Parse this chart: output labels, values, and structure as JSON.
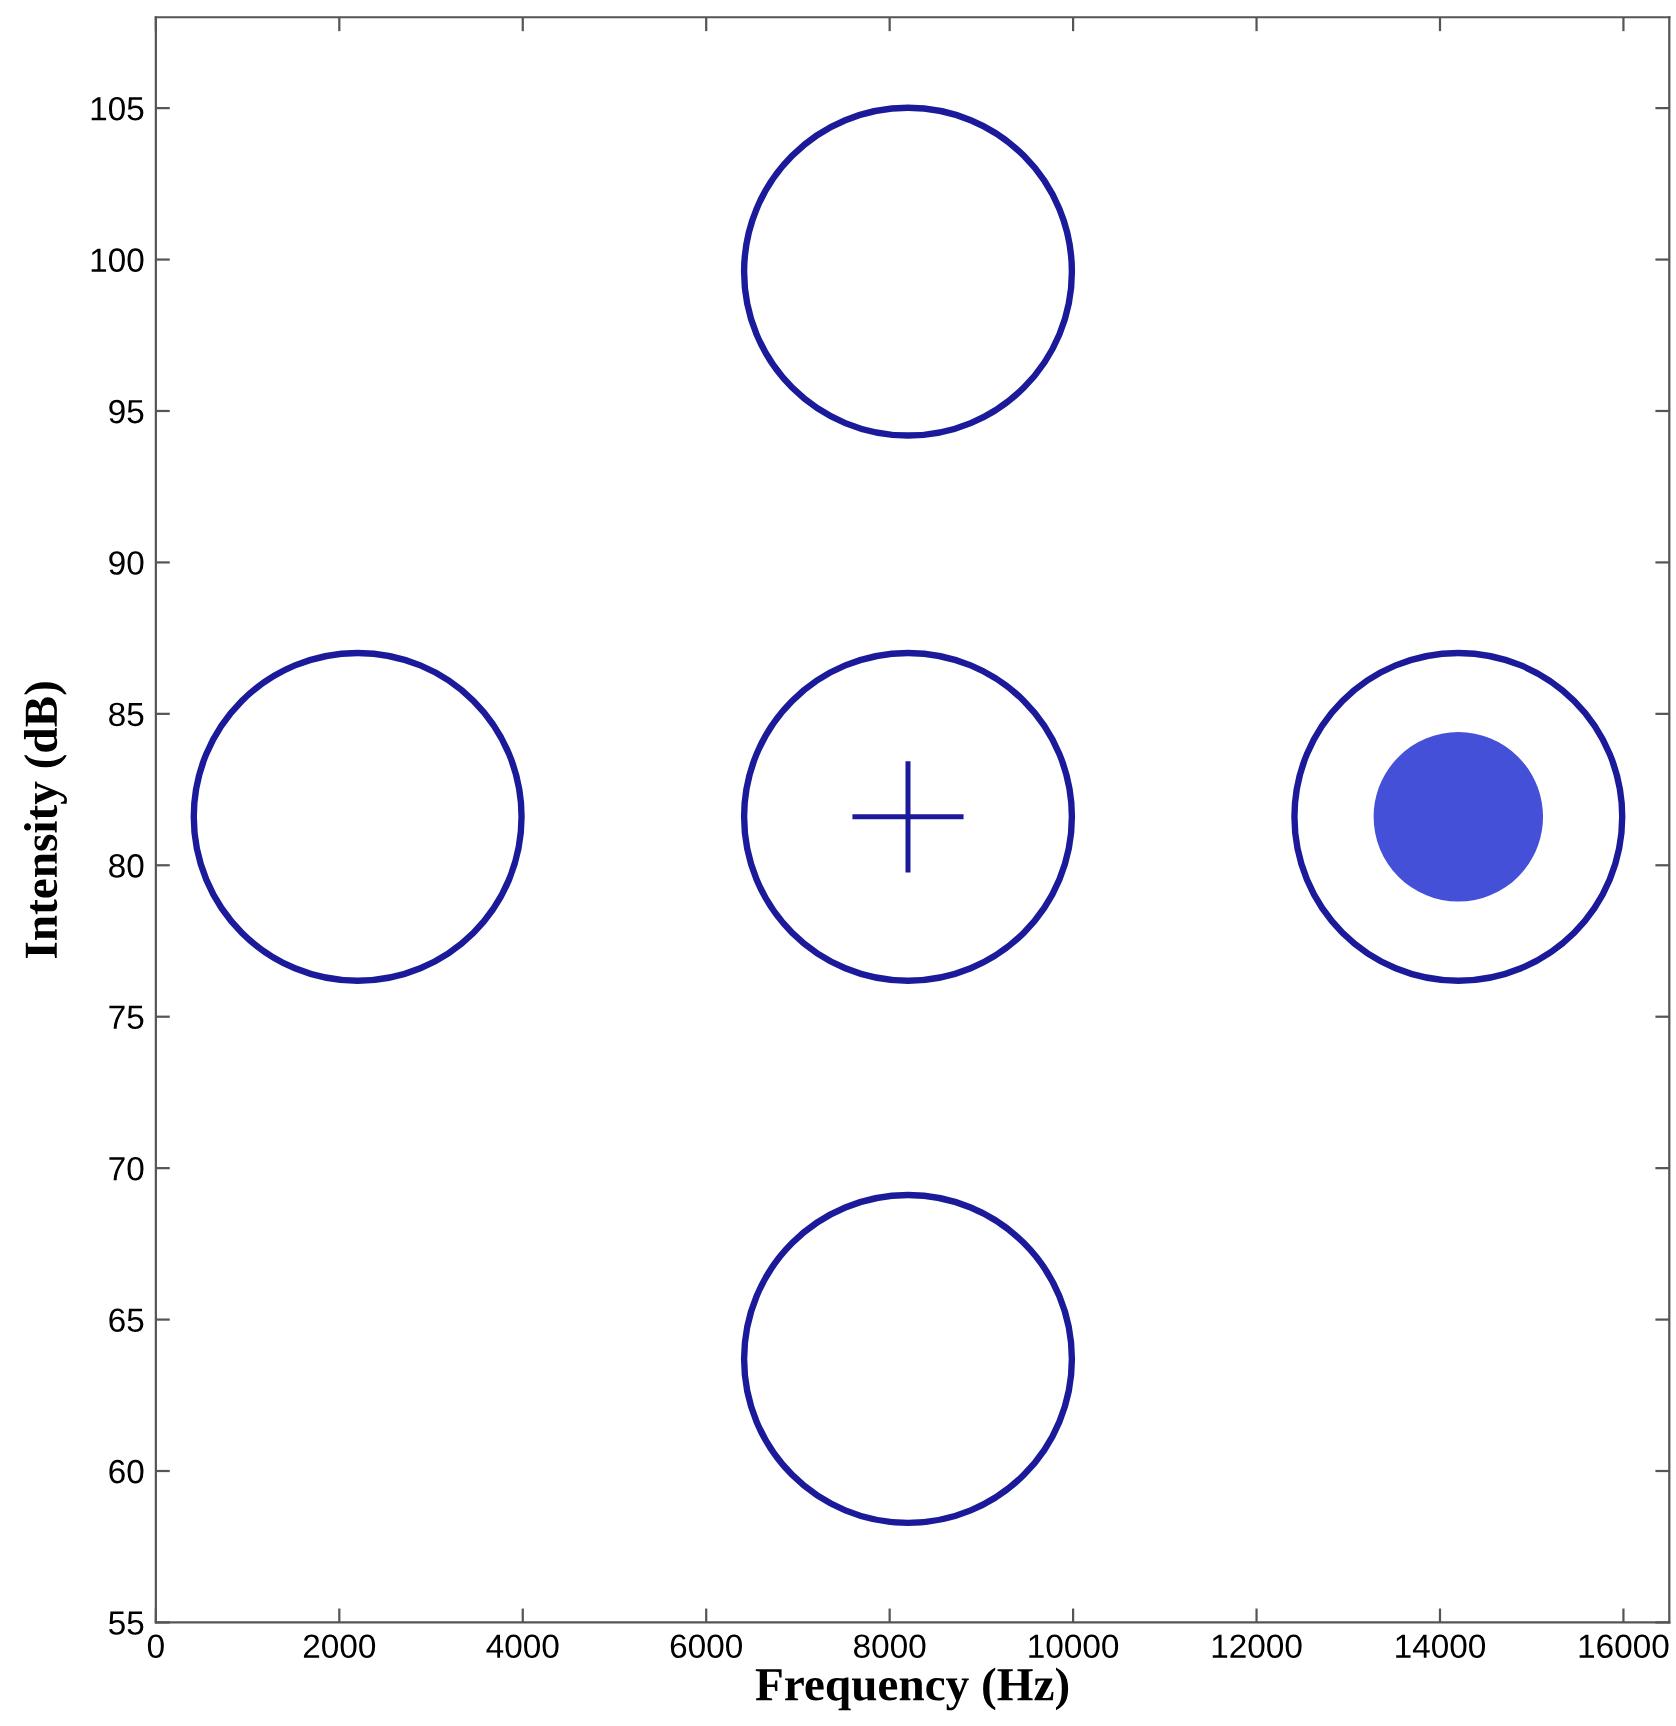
{
  "chart_data": {
    "type": "bubble",
    "xlabel": "Frequency (Hz)",
    "ylabel": "Intensity (dB)",
    "xlim": [
      0,
      16500
    ],
    "xticks": [
      0,
      2000,
      4000,
      6000,
      8000,
      10000,
      12000,
      14000,
      16000
    ],
    "ylim": [
      55,
      108
    ],
    "yticks": [
      55,
      60,
      65,
      70,
      75,
      80,
      85,
      90,
      95,
      100,
      105
    ],
    "grid": false,
    "legend": false,
    "series": [
      {
        "color": "#1a1a9a",
        "marker": "circle",
        "x": [
          8200,
          2200,
          8200,
          14200,
          8200
        ],
        "values": [
          99.6,
          81.6,
          81.6,
          81.6,
          63.7
        ],
        "sizes": [
          1,
          1,
          1,
          1,
          1
        ]
      },
      {
        "type": "scatter",
        "color": "#1a1a9a",
        "marker": "cross",
        "x": [
          8200
        ],
        "values": [
          81.6
        ]
      },
      {
        "type": "scatter",
        "color": "#4450d8",
        "marker": "circle",
        "x": [
          14200
        ],
        "values": [
          81.6
        ]
      }
    ]
  }
}
